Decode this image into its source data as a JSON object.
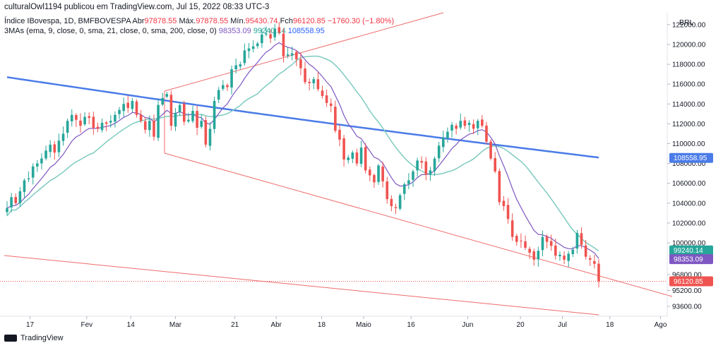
{
  "header": {
    "publisher": "culturalOwl1194 publicou em TradingView.com, Jul 15, 2022 08:33 UTC-3",
    "symbol": "Índice IBovespa, 1D, BMFBOVESPA",
    "o_label": "Abr",
    "o_value": "97878.55",
    "h_label": "Máx.",
    "h_value": "97878.55",
    "l_label": "Mín.",
    "l_value": "95430.74",
    "c_label": "Fch",
    "c_value": "96120.85",
    "change": "−1760.30 (−1.80%)",
    "ma_label": "3MAs (ema, 9, close, 0, sma, 21, close, 0, sma, 200, close, 0)",
    "ma_values": [
      "98353.09",
      "99240.14",
      "108558.95"
    ]
  },
  "currency": "BRL",
  "footer": {
    "brand": "TradingView"
  },
  "colors": {
    "up": "#26a69a",
    "down": "#ef5350",
    "ema9": "#7e57c2",
    "sma21": "#7ecbc0",
    "sma200": "#4a7be8",
    "trend": "#f06b6b"
  },
  "chart_data": {
    "type": "candlestick",
    "ylim": [
      92600,
      123200
    ],
    "yticks": [
      "122000.00",
      "120000.00",
      "118000.00",
      "116000.00",
      "114000.00",
      "112000.00",
      "110000.00",
      "108000.00",
      "106000.00",
      "104000.00",
      "102000.00",
      "100000.00",
      "96800.00",
      "95200.00",
      "93600.00"
    ],
    "xticks": [
      {
        "label": "17",
        "x": 0.045
      },
      {
        "label": "Fev",
        "x": 0.13
      },
      {
        "label": "14",
        "x": 0.196
      },
      {
        "label": "Mar",
        "x": 0.263
      },
      {
        "label": "21",
        "x": 0.352
      },
      {
        "label": "Abr",
        "x": 0.414
      },
      {
        "label": "18",
        "x": 0.482
      },
      {
        "label": "Maio",
        "x": 0.545
      },
      {
        "label": "16",
        "x": 0.616
      },
      {
        "label": "Jun",
        "x": 0.701
      },
      {
        "label": "20",
        "x": 0.78
      },
      {
        "label": "Jul",
        "x": 0.843
      },
      {
        "label": "18",
        "x": 0.914
      },
      {
        "label": "Ago",
        "x": 0.99
      }
    ],
    "closes": [
      103500,
      104600,
      104000,
      105200,
      106300,
      106500,
      107700,
      108000,
      108500,
      109300,
      109900,
      109100,
      110300,
      111000,
      112300,
      112900,
      112400,
      111800,
      112700,
      112600,
      111600,
      111500,
      112100,
      112000,
      112300,
      112900,
      113400,
      114000,
      113600,
      114300,
      112900,
      112300,
      111400,
      112300,
      110700,
      113900,
      114600,
      115000,
      111800,
      113100,
      113900,
      112200,
      112400,
      113300,
      111600,
      112300,
      109900,
      111500,
      114300,
      115400,
      115900,
      115700,
      117500,
      117900,
      118000,
      119400,
      119600,
      119800,
      120100,
      121000,
      121100,
      120600,
      121600,
      121200,
      118800,
      119000,
      119100,
      118500,
      117600,
      116200,
      116100,
      116500,
      115500,
      114800,
      114100,
      113800,
      111300,
      110400,
      108400,
      108600,
      109100,
      108000,
      109600,
      107300,
      106800,
      106100,
      107800,
      106200,
      104400,
      103700,
      103500,
      104800,
      105900,
      106300,
      107200,
      108300,
      108100,
      106900,
      107300,
      108500,
      109800,
      110600,
      111200,
      111900,
      111500,
      112300,
      111800,
      112100,
      111500,
      112300,
      111800,
      110200,
      108500,
      107200,
      104100,
      103700,
      102400,
      100600,
      100100,
      100200,
      99500,
      99000,
      98300,
      99200,
      100600,
      100100,
      99700,
      98700,
      98800,
      98300,
      98900,
      99300,
      101000,
      99800,
      98600,
      98300,
      97880,
      96120
    ],
    "ema9_end": "98353.09",
    "sma21_end": "99240.14",
    "sma200_end": "108558.95",
    "last_close": "96120.85"
  }
}
